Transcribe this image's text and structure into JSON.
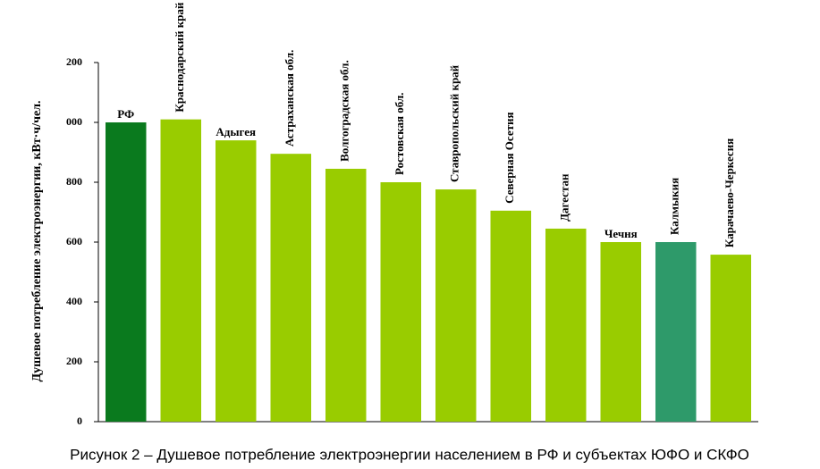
{
  "chart_data": {
    "type": "bar",
    "y_label": "Душевое потребление электроэнергии, кВт·ч/чел.",
    "caption": "Рисунок 2 – Душевое потребление электроэнергии населением в РФ и субъектах ЮФО и СКФО",
    "categories": [
      "РФ",
      "Краснодарский край",
      "Адыгея",
      "Астраханская обл.",
      "Волгоградская обл.",
      "Ростовская обл.",
      "Ставропольский край",
      "Северная Осетия",
      "Дагестан",
      "Чечня",
      "Калмыкия",
      "Карачаево-Черкесия"
    ],
    "values": [
      1000,
      1010,
      940,
      895,
      845,
      800,
      776,
      705,
      645,
      600,
      600,
      558
    ],
    "colors": [
      "#0a7a1e",
      "#99cc00",
      "#99cc00",
      "#99cc00",
      "#99cc00",
      "#99cc00",
      "#99cc00",
      "#99cc00",
      "#99cc00",
      "#99cc00",
      "#2e9a6a",
      "#99cc00"
    ],
    "ylim": [
      0,
      1200
    ],
    "yticks": [
      0,
      200,
      400,
      600,
      800,
      {
        "value": 1000,
        "label": "000"
      },
      {
        "value": 1200,
        "label": "200"
      }
    ],
    "grid": false
  }
}
